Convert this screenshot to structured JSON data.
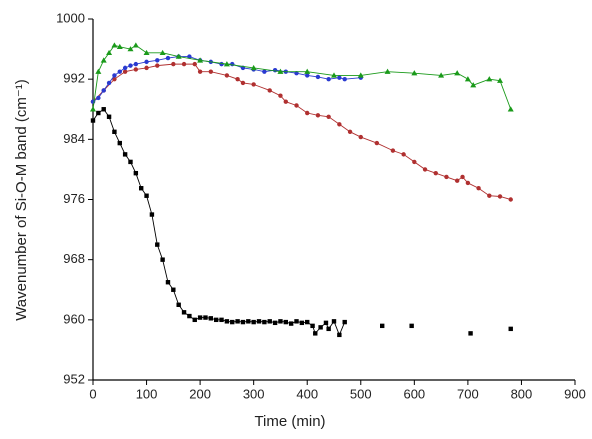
{
  "chart_data": {
    "type": "line",
    "xlabel": "Time (min)",
    "ylabel": "Wavenumber of Si-O-M band (cm⁻¹)",
    "xlim": [
      0,
      900
    ],
    "xticks": [
      0,
      100,
      200,
      300,
      400,
      500,
      600,
      700,
      800,
      900
    ],
    "ylim": [
      952,
      1000
    ],
    "yticks": [
      952,
      960,
      968,
      976,
      984,
      992,
      1000
    ],
    "series": [
      {
        "color": "#000000",
        "marker": "square",
        "line": true,
        "x": [
          0,
          10,
          20,
          30,
          40,
          50,
          60,
          70,
          80,
          90,
          100,
          110,
          120,
          130,
          140,
          150,
          160,
          170,
          180,
          190,
          200,
          210,
          220,
          230,
          240,
          250,
          260,
          270,
          280,
          290,
          300,
          310,
          320,
          330,
          340,
          350,
          360,
          370,
          380,
          390,
          400,
          410,
          415,
          425,
          435,
          440,
          450,
          460,
          470
        ],
        "values": [
          986.5,
          987.5,
          988,
          987,
          985,
          983.5,
          982,
          981,
          979.5,
          977.5,
          976.5,
          974,
          970,
          968,
          965,
          964,
          962,
          961,
          960.5,
          960,
          960.3,
          960.3,
          960.2,
          960,
          960,
          959.8,
          959.7,
          959.8,
          959.7,
          959.8,
          959.7,
          959.8,
          959.7,
          959.8,
          959.6,
          959.8,
          959.7,
          959.5,
          959.8,
          959.6,
          959.7,
          959.2,
          958.2,
          959,
          959.6,
          958.8,
          959.8,
          958,
          959.7
        ]
      },
      {
        "color": "#000000",
        "marker": "square",
        "line": false,
        "x": [
          540,
          595,
          705,
          780
        ],
        "values": [
          959.2,
          959.2,
          958.2,
          958.8
        ]
      },
      {
        "color": "#b03030",
        "marker": "circle",
        "line": true,
        "x": [
          0,
          20,
          40,
          60,
          80,
          100,
          120,
          150,
          170,
          190,
          200,
          220,
          250,
          270,
          280,
          300,
          330,
          350,
          360,
          380,
          400,
          420,
          440,
          460,
          480,
          500,
          530,
          560,
          580,
          600,
          620,
          640,
          660,
          680,
          690,
          700,
          720,
          740,
          760,
          780
        ],
        "values": [
          989,
          990.5,
          992,
          993,
          993.3,
          993.5,
          993.8,
          994,
          994,
          994,
          993,
          993,
          992.5,
          992,
          991.5,
          991.3,
          990.5,
          989.8,
          989,
          988.5,
          987.5,
          987.2,
          987,
          986,
          985,
          984.3,
          983.5,
          982.5,
          982,
          981,
          980,
          979.5,
          979,
          978.5,
          979,
          978.2,
          977.5,
          976.5,
          976.4,
          976
        ]
      },
      {
        "color": "#2a3ad0",
        "marker": "circle",
        "line": true,
        "x": [
          0,
          10,
          20,
          30,
          40,
          50,
          60,
          70,
          80,
          100,
          120,
          140,
          160,
          180,
          200,
          220,
          240,
          260,
          280,
          300,
          320,
          340,
          360,
          380,
          400,
          420,
          440,
          460,
          470,
          500
        ],
        "values": [
          989,
          989.5,
          990.5,
          991.5,
          992.5,
          993,
          993.5,
          993.8,
          994,
          994.3,
          994.5,
          994.8,
          995,
          995,
          994.5,
          994.3,
          994,
          994,
          993.5,
          993.3,
          993,
          993.2,
          993,
          992.8,
          992.5,
          992.3,
          992,
          992.2,
          992,
          992.2
        ]
      },
      {
        "color": "#1a9a1a",
        "marker": "triangle",
        "line": true,
        "x": [
          0,
          10,
          20,
          30,
          40,
          50,
          70,
          80,
          100,
          130,
          160,
          200,
          250,
          300,
          350,
          400,
          450,
          500,
          550,
          600,
          650,
          680,
          700,
          710,
          740,
          760,
          780
        ],
        "values": [
          988,
          993,
          994.5,
          995.5,
          996.5,
          996.3,
          996,
          996.5,
          995.5,
          995.5,
          995,
          994.5,
          994,
          993.5,
          993,
          993,
          992.5,
          992.5,
          993,
          992.8,
          992.5,
          992.8,
          992,
          991.2,
          992,
          991.8,
          988
        ]
      }
    ]
  }
}
